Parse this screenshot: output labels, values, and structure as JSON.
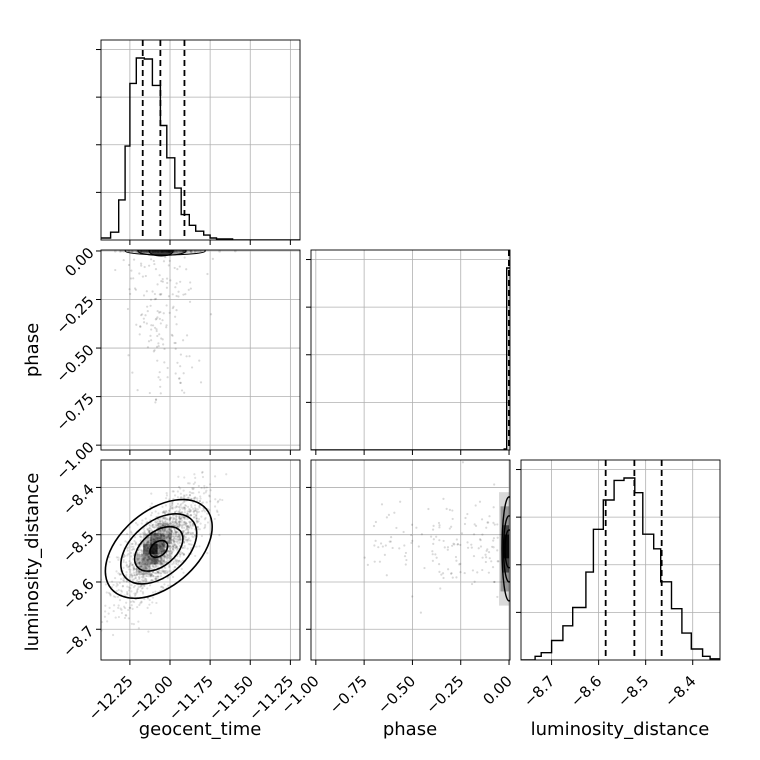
{
  "chart_data": {
    "type": "corner",
    "parameters": [
      "geocent_time",
      "phase",
      "luminosity_distance"
    ],
    "axis_labels": {
      "geocent_time": "geocent_time",
      "phase": "phase",
      "luminosity_distance": "luminosity_distance"
    },
    "ranges": {
      "geocent_time": [
        -12.43,
        -11.19
      ],
      "phase": [
        -1.025,
        0.005
      ],
      "luminosity_distance": [
        -8.765,
        -8.342
      ]
    },
    "ticks": {
      "geocent_time": [
        {
          "value": -12.25,
          "label": "−12.25"
        },
        {
          "value": -12.0,
          "label": "−12.00"
        },
        {
          "value": -11.75,
          "label": "−11.75"
        },
        {
          "value": -11.5,
          "label": "−11.50"
        },
        {
          "value": -11.25,
          "label": "−11.25"
        }
      ],
      "phase": [
        {
          "value": -1.0,
          "label": "−1.00"
        },
        {
          "value": -0.75,
          "label": "−0.75"
        },
        {
          "value": -0.5,
          "label": "−0.50"
        },
        {
          "value": -0.25,
          "label": "−0.25"
        },
        {
          "value": 0.0,
          "label": "0.00"
        }
      ],
      "luminosity_distance": [
        {
          "value": -8.7,
          "label": "−8.7"
        },
        {
          "value": -8.6,
          "label": "−8.6"
        },
        {
          "value": -8.5,
          "label": "−8.5"
        },
        {
          "value": -8.4,
          "label": "−8.4"
        }
      ]
    },
    "grid": true,
    "histograms": {
      "geocent_time": {
        "bin_edges": [
          -12.43,
          -12.37,
          -12.32,
          -12.28,
          -12.25,
          -12.21,
          -12.16,
          -12.11,
          -12.06,
          -12.02,
          -11.97,
          -11.93,
          -11.88,
          -11.84,
          -11.79,
          -11.75,
          -11.71,
          -11.66,
          -11.61,
          -11.56,
          -11.52,
          -11.46,
          -11.19
        ],
        "counts": [
          2,
          8,
          41,
          96,
          160,
          186,
          185,
          158,
          117,
          84,
          53,
          26,
          15,
          9,
          5,
          2,
          1,
          1,
          0,
          0,
          0,
          0
        ],
        "quantiles": [
          -12.17,
          -12.06,
          -11.91
        ]
      },
      "phase": {
        "bin_edges": [
          -1.025,
          -0.025,
          -0.012,
          0.005
        ],
        "counts": [
          0,
          1,
          180
        ],
        "quantiles": [
          0.0,
          0.0,
          0.0
        ]
      },
      "luminosity_distance": {
        "bin_edges": [
          -8.765,
          -8.735,
          -8.722,
          -8.7,
          -8.676,
          -8.655,
          -8.627,
          -8.611,
          -8.59,
          -8.567,
          -8.546,
          -8.523,
          -8.506,
          -8.483,
          -8.468,
          -8.445,
          -8.423,
          -8.403,
          -8.379,
          -8.363,
          -8.342
        ],
        "counts": [
          0,
          3,
          6,
          16,
          28,
          43,
          72,
          107,
          131,
          147,
          149,
          137,
          103,
          91,
          64,
          42,
          22,
          9,
          3,
          1
        ],
        "quantiles": [
          -8.585,
          -8.524,
          -8.466
        ]
      }
    },
    "scatter": {
      "geocent_time_vs_phase": {
        "x_mean": -12.05,
        "x_sd": 0.12,
        "dense_band_y": [
          -0.01,
          0.0
        ],
        "sparse_y_range": [
          -0.82,
          -0.03
        ]
      },
      "geocent_time_vs_luminosity_distance": {
        "x_mean": -12.06,
        "x_sd": 0.13,
        "y_mean": -8.525,
        "y_sd": 0.055,
        "correlation": 0.7,
        "contour_levels": [
          "0.12",
          "0.28",
          "0.46",
          "0.62"
        ],
        "peak": [
          -12.1,
          -8.53
        ]
      },
      "phase_vs_luminosity_distance": {
        "dense_band_x": [
          -0.02,
          0.0
        ],
        "y_mean": -8.525,
        "y_sd": 0.05,
        "sparse_x_range": [
          -0.75,
          -0.05
        ]
      }
    }
  }
}
